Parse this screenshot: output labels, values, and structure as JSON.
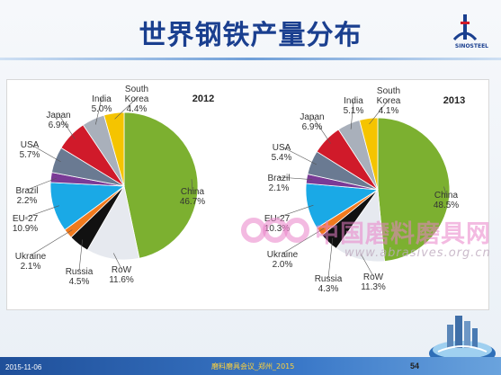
{
  "slide": {
    "title": "世界钢铁产量分布",
    "logo_label": "SINOSTEEL",
    "watermark_cn": "中国磨料磨具网",
    "watermark_url": "www.abrasives.org.cn",
    "footer_date": "2015-11-06",
    "footer_center": "磨料磨具会议_郑州_2015",
    "page_number": "54",
    "colors": {
      "title": "#1a3f8f",
      "footer": "#2a5fb0"
    }
  },
  "chart_data": [
    {
      "type": "pie",
      "title": "2012",
      "slices": [
        {
          "name": "China",
          "value": 46.7,
          "label": "46.7%",
          "color": "#7cb030"
        },
        {
          "name": "RoW",
          "value": 11.6,
          "label": "11.6%",
          "color": "#e6e9ef"
        },
        {
          "name": "Russia",
          "value": 4.5,
          "label": "4.5%",
          "color": "#111111"
        },
        {
          "name": "Ukraine",
          "value": 2.1,
          "label": "2.1%",
          "color": "#f07a1e"
        },
        {
          "name": "EU-27",
          "value": 10.9,
          "label": "10.9%",
          "color": "#1aa9e6"
        },
        {
          "name": "Brazil",
          "value": 2.2,
          "label": "2.2%",
          "color": "#7a3a96"
        },
        {
          "name": "USA",
          "value": 5.7,
          "label": "5.7%",
          "color": "#6a7a92"
        },
        {
          "name": "Japan",
          "value": 6.9,
          "label": "6.9%",
          "color": "#d01a2a"
        },
        {
          "name": "India",
          "value": 5.0,
          "label": "5.0%",
          "color": "#a9b0bb"
        },
        {
          "name": "South Korea",
          "value": 4.4,
          "label": "4.4%",
          "color": "#f5c400"
        }
      ]
    },
    {
      "type": "pie",
      "title": "2013",
      "slices": [
        {
          "name": "China",
          "value": 48.5,
          "label": "48.5%",
          "color": "#7cb030"
        },
        {
          "name": "RoW",
          "value": 11.3,
          "label": "11.3%",
          "color": "#e6e9ef"
        },
        {
          "name": "Russia",
          "value": 4.3,
          "label": "4.3%",
          "color": "#111111"
        },
        {
          "name": "Ukraine",
          "value": 2.0,
          "label": "2.0%",
          "color": "#f07a1e"
        },
        {
          "name": "EU-27",
          "value": 10.3,
          "label": "10.3%",
          "color": "#1aa9e6"
        },
        {
          "name": "Brazil",
          "value": 2.1,
          "label": "2.1%",
          "color": "#7a3a96"
        },
        {
          "name": "USA",
          "value": 5.4,
          "label": "5.4%",
          "color": "#6a7a92"
        },
        {
          "name": "Japan",
          "value": 6.9,
          "label": "6.9%",
          "color": "#d01a2a"
        },
        {
          "name": "India",
          "value": 5.1,
          "label": "5.1%",
          "color": "#a9b0bb"
        },
        {
          "name": "South Korea",
          "value": 4.1,
          "label": "4.1%",
          "color": "#f5c400"
        }
      ]
    }
  ]
}
